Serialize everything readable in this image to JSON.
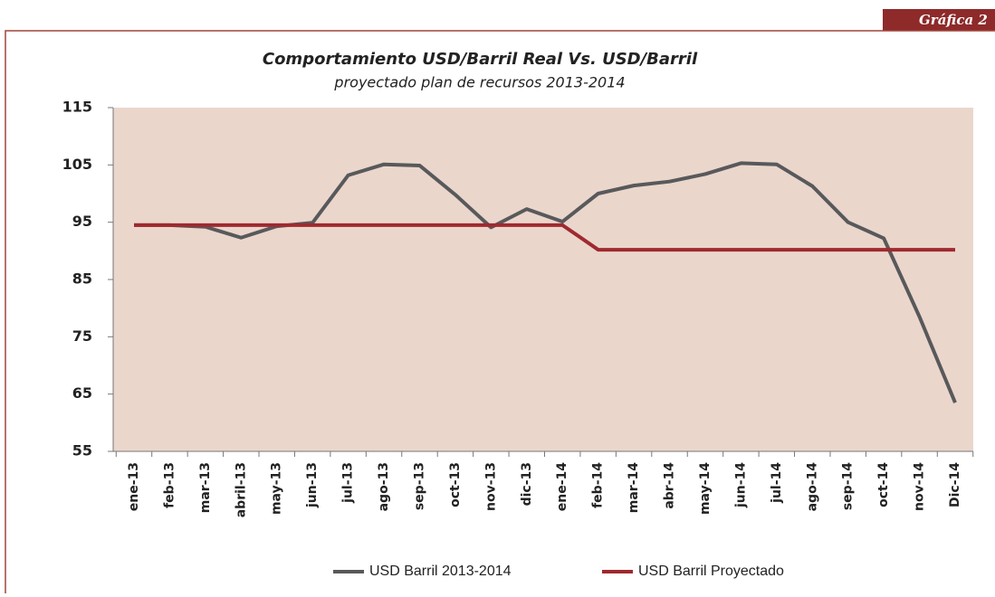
{
  "badge": "Gráfica 2",
  "chart_data": {
    "type": "line",
    "title": "Comportamiento USD/Barril Real Vs. USD/Barril",
    "subtitle": "proyectado plan de recursos 2013-2014",
    "categories": [
      "ene-13",
      "feb-13",
      "mar-13",
      "abril-13",
      "may-13",
      "jun-13",
      "jul-13",
      "ago-13",
      "sep-13",
      "oct-13",
      "nov-13",
      "dic-13",
      "ene-14",
      "feb-14",
      "mar-14",
      "abr-14",
      "may-14",
      "jun-14",
      "jul-14",
      "ago-14",
      "sep-14",
      "oct-14",
      "nov-14",
      "Dic-14"
    ],
    "series": [
      {
        "name": "USD Barril 2013-2014",
        "color": "#58595b",
        "values": [
          94.5,
          94.5,
          94.2,
          92.3,
          94.3,
          94.9,
          103.2,
          105.1,
          104.9,
          99.8,
          94.1,
          97.3,
          95.1,
          100.0,
          101.4,
          102.1,
          103.4,
          105.3,
          105.1,
          101.3,
          95.0,
          92.2,
          78.5,
          63.5
        ]
      },
      {
        "name": "USD Barril Proyectado",
        "color": "#9e2a2f",
        "values": [
          94.5,
          94.5,
          94.5,
          94.5,
          94.5,
          94.5,
          94.5,
          94.5,
          94.5,
          94.5,
          94.5,
          94.5,
          94.5,
          90.2,
          90.2,
          90.2,
          90.2,
          90.2,
          90.2,
          90.2,
          90.2,
          90.2,
          90.2,
          90.2
        ]
      }
    ],
    "ylim": [
      55,
      115
    ],
    "yticks": [
      55,
      65,
      75,
      85,
      95,
      105,
      115
    ],
    "plot_background": "#ebd6cc"
  }
}
